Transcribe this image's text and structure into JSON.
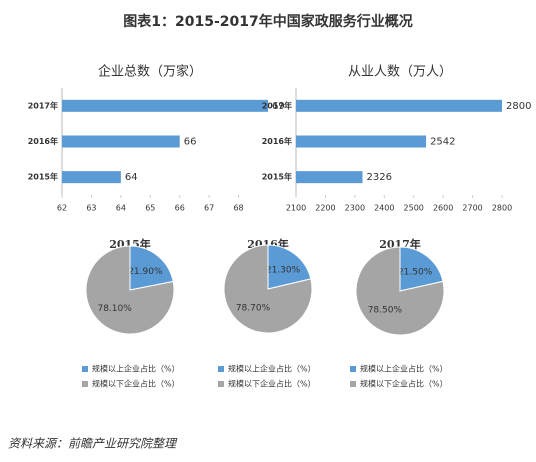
{
  "title": "图表1：2015-2017年中国家政服务行业概况",
  "source": "资料来源：前瞻产业研究院整理",
  "chart_data": [
    {
      "type": "hbar",
      "title": "企业总数（万家）",
      "categories": [
        "2017年",
        "2016年",
        "2015年"
      ],
      "values": [
        69,
        66,
        64
      ],
      "color": "#5b9bd5",
      "xlim": [
        62,
        69
      ],
      "xticks": [
        62,
        63,
        64,
        65,
        66,
        67,
        68
      ]
    },
    {
      "type": "hbar",
      "title": "从业人数（万人）",
      "categories": [
        "2017年",
        "2016年",
        "2015年"
      ],
      "values": [
        2800,
        2542,
        2326
      ],
      "color": "#5b9bd5",
      "xlim": [
        2100,
        2800
      ],
      "xticks": [
        2100,
        2200,
        2300,
        2400,
        2500,
        2600,
        2700,
        2800
      ]
    },
    {
      "type": "pie",
      "title": "2015年",
      "categories": [
        "规模以上企业占比（%）",
        "规模以下企业占比（%）"
      ],
      "values": [
        21.9,
        78.1
      ],
      "value_labels": [
        "21.90%",
        "78.10%"
      ],
      "colors": [
        "#5b9bd5",
        "#a5a5a5"
      ]
    },
    {
      "type": "pie",
      "title": "2016年",
      "categories": [
        "规模以上企业占比（%）",
        "规模以下企业占比（%）"
      ],
      "values": [
        21.3,
        78.7
      ],
      "value_labels": [
        "21.30%",
        "78.70%"
      ],
      "colors": [
        "#5b9bd5",
        "#a5a5a5"
      ]
    },
    {
      "type": "pie",
      "title": "2017年",
      "categories": [
        "规模以上企业占比（%）",
        "规模以下企业占比（%）"
      ],
      "values": [
        21.5,
        78.5
      ],
      "value_labels": [
        "21.50%",
        "78.50%"
      ],
      "colors": [
        "#5b9bd5",
        "#a5a5a5"
      ]
    }
  ]
}
